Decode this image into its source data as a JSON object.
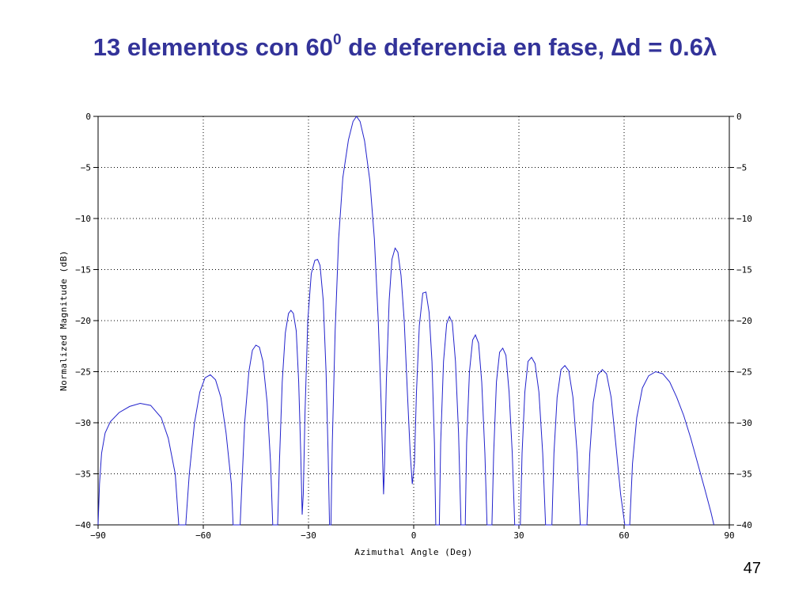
{
  "slide": {
    "title_main": "13 elementos con 60",
    "title_sup": "0",
    "title_rest": " de deferencia en fase, ",
    "title_delta": "∆",
    "title_d": "d = 0.6",
    "title_lambda": "λ",
    "page_number": "47"
  },
  "chart_data": {
    "type": "line",
    "title": "",
    "xlabel": "Azimuthal Angle (Deg)",
    "ylabel": "Normalized Magnitude (dB)",
    "xlim": [
      -90,
      90
    ],
    "ylim": [
      -40,
      0
    ],
    "x_ticks": [
      -90,
      -60,
      -30,
      0,
      30,
      60,
      90
    ],
    "y_ticks": [
      0,
      -5,
      -10,
      -15,
      -20,
      -25,
      -30,
      -35,
      -40
    ],
    "grid": true,
    "line_color": "#2222cc",
    "series": [
      {
        "values": [
          [
            -90,
            -40
          ],
          [
            -89.6,
            -36
          ],
          [
            -89,
            -33
          ],
          [
            -88,
            -31
          ],
          [
            -86.5,
            -29.9
          ],
          [
            -84,
            -29
          ],
          [
            -81,
            -28.4
          ],
          [
            -78,
            -28.1
          ],
          [
            -75,
            -28.3
          ],
          [
            -72,
            -29.5
          ],
          [
            -70,
            -31.5
          ],
          [
            -68,
            -35
          ],
          [
            -67,
            -40
          ],
          [
            -65,
            -40
          ],
          [
            -64,
            -35
          ],
          [
            -62.5,
            -30
          ],
          [
            -61,
            -27
          ],
          [
            -59.5,
            -25.6
          ],
          [
            -58,
            -25.3
          ],
          [
            -56.5,
            -25.8
          ],
          [
            -55,
            -27.5
          ],
          [
            -53.5,
            -31
          ],
          [
            -52,
            -36
          ],
          [
            -51.5,
            -40
          ],
          [
            -49.5,
            -40
          ],
          [
            -49,
            -36
          ],
          [
            -48.2,
            -30
          ],
          [
            -47,
            -25
          ],
          [
            -46,
            -22.9
          ],
          [
            -45,
            -22.4
          ],
          [
            -44,
            -22.6
          ],
          [
            -43,
            -24
          ],
          [
            -41.8,
            -28
          ],
          [
            -40.8,
            -34
          ],
          [
            -40.2,
            -40
          ],
          [
            -38.8,
            -40
          ],
          [
            -38.3,
            -34
          ],
          [
            -37.5,
            -26
          ],
          [
            -36.6,
            -21.2
          ],
          [
            -35.7,
            -19.3
          ],
          [
            -35,
            -19
          ],
          [
            -34.3,
            -19.3
          ],
          [
            -33.5,
            -21
          ],
          [
            -32.8,
            -26
          ],
          [
            -32.2,
            -33
          ],
          [
            -31.8,
            -39
          ],
          [
            -31.5,
            -37
          ],
          [
            -31,
            -29
          ],
          [
            -30.2,
            -20
          ],
          [
            -29.2,
            -15.4
          ],
          [
            -28.2,
            -14.1
          ],
          [
            -27.4,
            -14
          ],
          [
            -26.7,
            -14.6
          ],
          [
            -25.8,
            -18
          ],
          [
            -25,
            -25
          ],
          [
            -24.4,
            -33
          ],
          [
            -24,
            -40
          ],
          [
            -23.6,
            -40
          ],
          [
            -23.2,
            -32
          ],
          [
            -22.4,
            -21
          ],
          [
            -21.4,
            -12
          ],
          [
            -20.2,
            -6
          ],
          [
            -18.6,
            -2.3
          ],
          [
            -17.3,
            -0.5
          ],
          [
            -16.3,
            0
          ],
          [
            -15.3,
            -0.5
          ],
          [
            -14,
            -2.4
          ],
          [
            -12.5,
            -6.3
          ],
          [
            -11.2,
            -12
          ],
          [
            -10.1,
            -20
          ],
          [
            -9.3,
            -28
          ],
          [
            -8.6,
            -37
          ],
          [
            -8.3,
            -34
          ],
          [
            -7.8,
            -26
          ],
          [
            -7,
            -18
          ],
          [
            -6.2,
            -14
          ],
          [
            -5.3,
            -12.9
          ],
          [
            -4.5,
            -13.3
          ],
          [
            -3.6,
            -15.6
          ],
          [
            -2.7,
            -20
          ],
          [
            -1.8,
            -27
          ],
          [
            -1,
            -33
          ],
          [
            -0.4,
            -36
          ],
          [
            0.2,
            -34
          ],
          [
            0.8,
            -27
          ],
          [
            1.6,
            -20.5
          ],
          [
            2.6,
            -17.3
          ],
          [
            3.5,
            -17.2
          ],
          [
            4.4,
            -19.2
          ],
          [
            5.2,
            -24
          ],
          [
            5.9,
            -32
          ],
          [
            6.3,
            -40
          ],
          [
            7.3,
            -40
          ],
          [
            7.7,
            -32
          ],
          [
            8.5,
            -24
          ],
          [
            9.4,
            -20.3
          ],
          [
            10.2,
            -19.6
          ],
          [
            11,
            -20.2
          ],
          [
            11.9,
            -24
          ],
          [
            12.8,
            -31
          ],
          [
            13.5,
            -40
          ],
          [
            14.7,
            -40
          ],
          [
            15.1,
            -32
          ],
          [
            15.9,
            -25
          ],
          [
            16.8,
            -21.9
          ],
          [
            17.6,
            -21.4
          ],
          [
            18.5,
            -22.2
          ],
          [
            19.4,
            -26
          ],
          [
            20.3,
            -33
          ],
          [
            20.9,
            -40
          ],
          [
            22.3,
            -40
          ],
          [
            22.8,
            -33
          ],
          [
            23.6,
            -26
          ],
          [
            24.5,
            -23.1
          ],
          [
            25.4,
            -22.7
          ],
          [
            26.3,
            -23.4
          ],
          [
            27.2,
            -27
          ],
          [
            28.1,
            -33
          ],
          [
            28.8,
            -40
          ],
          [
            30.4,
            -40
          ],
          [
            30.9,
            -33
          ],
          [
            31.7,
            -27
          ],
          [
            32.6,
            -24
          ],
          [
            33.6,
            -23.6
          ],
          [
            34.6,
            -24.2
          ],
          [
            35.7,
            -27
          ],
          [
            36.8,
            -33
          ],
          [
            37.6,
            -40
          ],
          [
            39.4,
            -40
          ],
          [
            40,
            -33
          ],
          [
            40.9,
            -27.5
          ],
          [
            42,
            -24.8
          ],
          [
            43.1,
            -24.4
          ],
          [
            44.2,
            -24.9
          ],
          [
            45.4,
            -27.5
          ],
          [
            46.6,
            -33
          ],
          [
            47.5,
            -40
          ],
          [
            49.4,
            -40
          ],
          [
            50.2,
            -33
          ],
          [
            51.2,
            -28
          ],
          [
            52.5,
            -25.3
          ],
          [
            53.8,
            -24.8
          ],
          [
            55,
            -25.2
          ],
          [
            56.3,
            -27.5
          ],
          [
            57.6,
            -32
          ],
          [
            59,
            -37
          ],
          [
            60.2,
            -40
          ],
          [
            61.6,
            -40
          ],
          [
            62.4,
            -34
          ],
          [
            63.6,
            -29.5
          ],
          [
            65.2,
            -26.6
          ],
          [
            67,
            -25.4
          ],
          [
            69,
            -25
          ],
          [
            71,
            -25.2
          ],
          [
            73,
            -26
          ],
          [
            75,
            -27.5
          ],
          [
            77,
            -29.3
          ],
          [
            79,
            -31.5
          ],
          [
            81,
            -34
          ],
          [
            83,
            -36.5
          ],
          [
            84.8,
            -38.8
          ],
          [
            85.6,
            -40
          ]
        ]
      }
    ]
  }
}
